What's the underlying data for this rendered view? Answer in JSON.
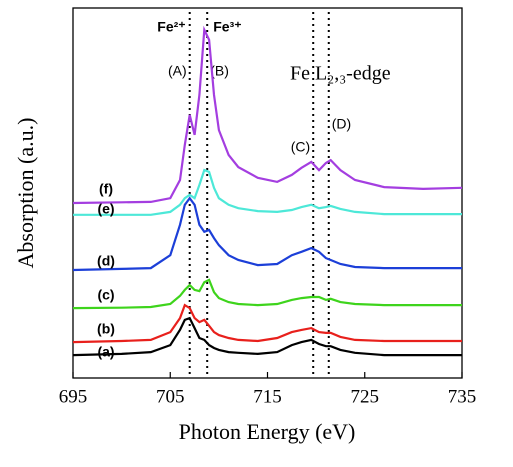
{
  "chart_data": {
    "type": "line",
    "x_label": "Photon Energy (eV)",
    "y_label": "Absorption (a.u.)",
    "annotation": "Fe L₂,₃-edge",
    "xlim": [
      695,
      735
    ],
    "xticks": [
      695,
      705,
      715,
      725,
      735
    ],
    "ylim": [
      0,
      100
    ],
    "x": [
      695,
      700,
      703,
      705,
      706,
      706.5,
      707,
      707.5,
      708,
      708.5,
      709,
      709.5,
      710,
      711,
      712,
      714,
      716,
      717.5,
      718.5,
      719.5,
      720.3,
      721,
      721.5,
      722.5,
      724,
      727,
      731,
      735
    ],
    "markers": [
      {
        "x": 707,
        "label": "Fe²⁺",
        "peak": "(A)"
      },
      {
        "x": 708.8,
        "label": "Fe³⁺",
        "peak": "(B)"
      },
      {
        "x": 719.7,
        "peak": "(C)"
      },
      {
        "x": 721.3,
        "peak": "(D)"
      }
    ],
    "series": [
      {
        "name": "(a)",
        "color": "#000000",
        "values": [
          6.2,
          6.5,
          7,
          8.9,
          13,
          15.7,
          16.2,
          13.5,
          10.8,
          10.3,
          8.9,
          8.1,
          7.6,
          7,
          6.8,
          6.5,
          7,
          8.9,
          9.7,
          10.3,
          9.2,
          8.6,
          8.6,
          7.6,
          6.8,
          6.2,
          6.2,
          6.2
        ]
      },
      {
        "name": "(b)",
        "color": "#e8201c",
        "values": [
          9.7,
          10,
          10.3,
          12.4,
          16.2,
          19.7,
          18.9,
          16.2,
          15.1,
          15.7,
          14.1,
          12.4,
          11.6,
          10.8,
          10.3,
          10,
          10.8,
          12.4,
          13,
          13.5,
          12.4,
          12.2,
          12.2,
          11.1,
          10.3,
          10,
          10,
          10
        ]
      },
      {
        "name": "(c)",
        "color": "#3ed41c",
        "values": [
          18.9,
          19,
          19.2,
          20,
          22.2,
          23.8,
          25.1,
          23.8,
          23.5,
          25.9,
          26.5,
          23.2,
          21.6,
          20.5,
          20,
          19.7,
          20,
          21.1,
          21.6,
          21.9,
          21.9,
          21.1,
          21.4,
          20.5,
          20,
          19.7,
          19.7,
          19.7
        ]
      },
      {
        "name": "(d)",
        "color": "#1c3fd8",
        "values": [
          29.2,
          29.5,
          29.7,
          33.2,
          41.4,
          46.8,
          48.6,
          46.8,
          41.4,
          39.5,
          40,
          37.8,
          35.9,
          33.2,
          31.9,
          30.5,
          30.8,
          33.2,
          34.1,
          35.1,
          34.1,
          32.4,
          31.9,
          30.8,
          30,
          29.7,
          29.7,
          29.7
        ]
      },
      {
        "name": "(e)",
        "color": "#4de8d8",
        "values": [
          44.1,
          44.1,
          44.1,
          44.9,
          46.8,
          48.6,
          49.5,
          48.6,
          52.2,
          56.2,
          55.7,
          51.4,
          48.6,
          46.8,
          45.9,
          45.1,
          44.9,
          45.4,
          46.2,
          46.8,
          45.9,
          46.2,
          46.5,
          45.7,
          44.9,
          44.3,
          44.3,
          44.3
        ]
      },
      {
        "name": "(f)",
        "color": "#a43ee0",
        "values": [
          47.3,
          47.5,
          47.6,
          48.6,
          53.5,
          63,
          71.1,
          65.7,
          76.5,
          94.1,
          91.4,
          76.5,
          67,
          60.3,
          57,
          54.1,
          53,
          54.9,
          56.8,
          58.4,
          56.2,
          58.1,
          58.9,
          56.2,
          53.5,
          51.6,
          51.1,
          51.4
        ]
      }
    ]
  }
}
